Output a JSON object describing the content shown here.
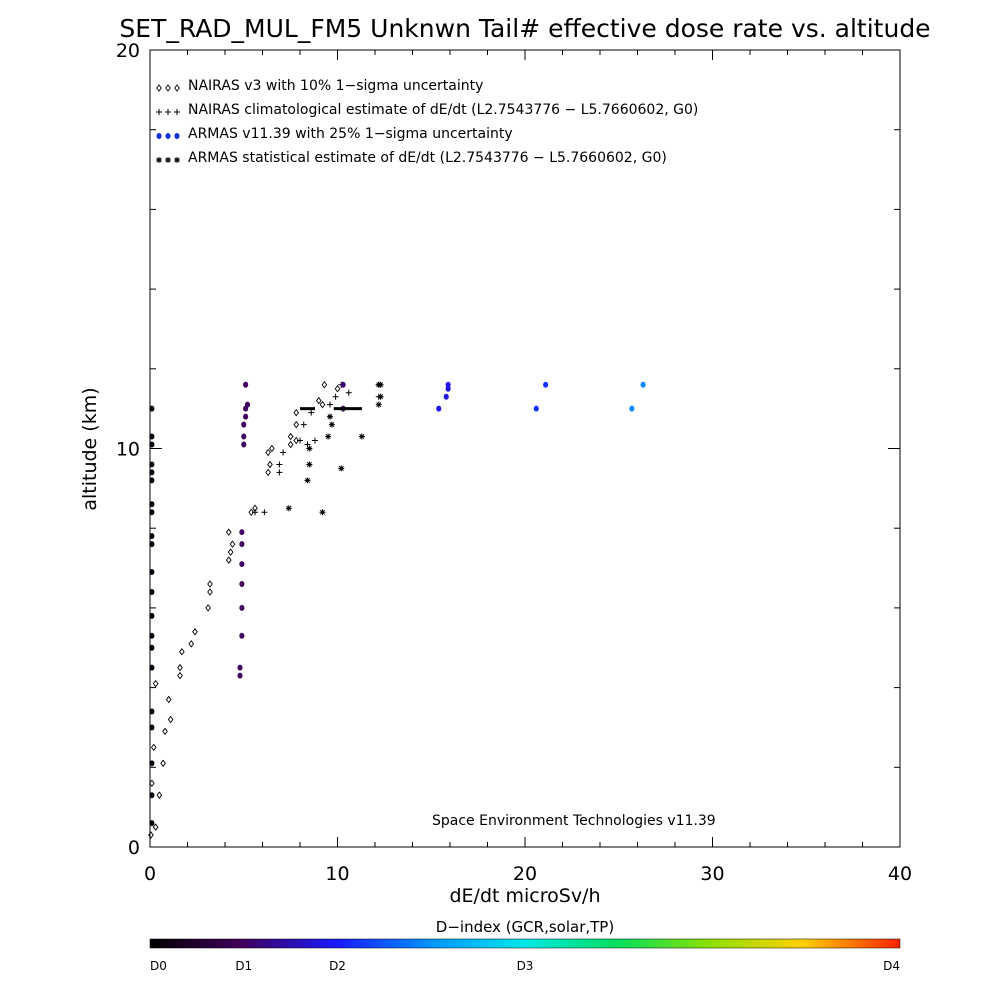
{
  "chart_data": {
    "type": "scatter",
    "title": "SET_RAD_MUL_FM5 Unknwn Tail#  effective dose rate vs. altitude",
    "xlabel": "dE/dt microSv/h",
    "ylabel": "altitude (km)",
    "xlim": [
      0,
      40
    ],
    "ylim": [
      0,
      20
    ],
    "x_ticks": [
      "0",
      "10",
      "20",
      "30",
      "40"
    ],
    "y_ticks": [
      "0",
      "10",
      "20"
    ],
    "grid": false,
    "legend_position": "top-left",
    "credit": "Space Environment Technologies v11.39",
    "colorbar": {
      "title": "D−index (GCR,solar,TP)",
      "ticks": [
        {
          "label": "D0",
          "value": 0
        },
        {
          "label": "D1",
          "value": 1
        },
        {
          "label": "D2",
          "value": 2
        },
        {
          "label": "D3",
          "value": 3
        },
        {
          "label": "D4",
          "value": 4
        }
      ],
      "tick_fractions": [
        0,
        0.125,
        0.25,
        0.5,
        1.0
      ]
    },
    "series": [
      {
        "name": "NAIRAS v3 with 10% 1−sigma uncertainty",
        "marker": "diamond",
        "color": "#000000",
        "points": [
          [
            0.05,
            0.3
          ],
          [
            0.3,
            0.5
          ],
          [
            0.5,
            1.3
          ],
          [
            0.1,
            1.6
          ],
          [
            0.7,
            2.1
          ],
          [
            0.2,
            2.5
          ],
          [
            0.8,
            2.9
          ],
          [
            1.1,
            3.2
          ],
          [
            1.0,
            3.7
          ],
          [
            0.3,
            4.1
          ],
          [
            1.6,
            4.3
          ],
          [
            1.6,
            4.5
          ],
          [
            1.7,
            4.9
          ],
          [
            2.2,
            5.1
          ],
          [
            2.4,
            5.4
          ],
          [
            3.1,
            6.0
          ],
          [
            3.2,
            6.4
          ],
          [
            3.2,
            6.6
          ],
          [
            4.2,
            7.2
          ],
          [
            4.3,
            7.4
          ],
          [
            4.4,
            7.6
          ],
          [
            4.2,
            7.9
          ],
          [
            5.4,
            8.4
          ],
          [
            5.6,
            8.5
          ],
          [
            6.3,
            9.4
          ],
          [
            6.4,
            9.6
          ],
          [
            6.3,
            9.9
          ],
          [
            6.5,
            10.0
          ],
          [
            7.5,
            10.1
          ],
          [
            7.5,
            10.3
          ],
          [
            7.8,
            10.2
          ],
          [
            7.8,
            10.6
          ],
          [
            7.8,
            10.9
          ],
          [
            9.2,
            11.1
          ],
          [
            9.0,
            11.2
          ],
          [
            9.3,
            11.6
          ],
          [
            10.0,
            11.5
          ]
        ]
      },
      {
        "name": "NAIRAS climatological estimate of dE/dt (L2.7543776 − L5.7660602, G0)",
        "marker": "plus",
        "color": "#000000",
        "points": [
          [
            5.6,
            8.4
          ],
          [
            6.1,
            8.4
          ],
          [
            6.9,
            9.4
          ],
          [
            6.9,
            9.6
          ],
          [
            7.1,
            9.9
          ],
          [
            8.0,
            10.2
          ],
          [
            8.4,
            10.1
          ],
          [
            8.8,
            10.2
          ],
          [
            8.2,
            10.6
          ],
          [
            8.6,
            10.9
          ],
          [
            9.6,
            11.1
          ],
          [
            9.9,
            11.3
          ],
          [
            10.2,
            11.6
          ],
          [
            10.6,
            11.4
          ],
          [
            12.2,
            11.3
          ],
          [
            12.2,
            11.6
          ]
        ]
      },
      {
        "name": "ARMAS v11.39 with 25% 1−sigma uncertainty",
        "marker": "dot",
        "color": "#1030e0",
        "points": [
          [
            0.1,
            0.6
          ],
          [
            0.1,
            1.3
          ],
          [
            0.1,
            2.1
          ],
          [
            0.1,
            3.0
          ],
          [
            0.1,
            3.4
          ],
          [
            0.1,
            4.5
          ],
          [
            0.1,
            5.0
          ],
          [
            0.1,
            5.3
          ],
          [
            0.1,
            5.8
          ],
          [
            0.1,
            6.4
          ],
          [
            0.1,
            6.9
          ],
          [
            0.1,
            7.6
          ],
          [
            0.1,
            7.8
          ],
          [
            0.1,
            8.4
          ],
          [
            0.1,
            8.6
          ],
          [
            0.1,
            9.2
          ],
          [
            0.1,
            9.4
          ],
          [
            0.1,
            9.6
          ],
          [
            0.1,
            10.1
          ],
          [
            0.1,
            10.3
          ],
          [
            0.1,
            11.0
          ],
          [
            4.8,
            4.3
          ],
          [
            4.8,
            4.5
          ],
          [
            4.9,
            5.3
          ],
          [
            4.9,
            6.0
          ],
          [
            4.9,
            6.6
          ],
          [
            4.9,
            7.1
          ],
          [
            4.9,
            7.6
          ],
          [
            4.9,
            7.9
          ],
          [
            5.0,
            10.1
          ],
          [
            5.0,
            10.3
          ],
          [
            5.0,
            10.6
          ],
          [
            5.1,
            10.8
          ],
          [
            5.1,
            11.0
          ],
          [
            5.2,
            11.1
          ],
          [
            5.1,
            11.6
          ],
          [
            10.3,
            11.6
          ],
          [
            10.3,
            11.0
          ],
          [
            15.4,
            11.0
          ],
          [
            15.8,
            11.3
          ],
          [
            15.9,
            11.5
          ],
          [
            15.9,
            11.6
          ],
          [
            20.6,
            11.0
          ],
          [
            21.1,
            11.6
          ],
          [
            25.7,
            11.0
          ],
          [
            26.3,
            11.6
          ]
        ],
        "d_index": [
          0.15,
          0.15,
          0.15,
          0.15,
          0.15,
          0.15,
          0.15,
          0.15,
          0.15,
          0.15,
          0.15,
          0.15,
          0.15,
          0.15,
          0.15,
          0.15,
          0.15,
          0.15,
          0.15,
          0.15,
          0.15,
          1.0,
          1.0,
          1.0,
          1.0,
          1.0,
          1.0,
          1.0,
          1.0,
          1.0,
          1.0,
          1.0,
          1.0,
          1.0,
          1.0,
          1.0,
          1.1,
          1.1,
          1.9,
          1.8,
          1.8,
          1.8,
          2.1,
          2.1,
          2.45,
          2.45
        ]
      },
      {
        "name": "ARMAS statistical estimate of dE/dt (L2.7543776 − L5.7660602, G0)",
        "marker": "asterisk",
        "color": "#000000",
        "points": [
          [
            7.4,
            8.5
          ],
          [
            9.2,
            8.4
          ],
          [
            8.4,
            9.2
          ],
          [
            8.5,
            9.6
          ],
          [
            8.5,
            10.0
          ],
          [
            10.2,
            9.5
          ],
          [
            9.5,
            10.3
          ],
          [
            9.7,
            10.6
          ],
          [
            9.6,
            10.8
          ],
          [
            11.3,
            10.3
          ],
          [
            12.2,
            11.1
          ],
          [
            12.3,
            11.3
          ],
          [
            12.3,
            11.6
          ],
          [
            12.2,
            11.6
          ]
        ]
      }
    ],
    "bar_segments": [
      {
        "x_start": 8.0,
        "x_end": 8.8,
        "y": 11.0
      },
      {
        "x_start": 9.8,
        "x_end": 11.3,
        "y": 11.0
      }
    ]
  }
}
